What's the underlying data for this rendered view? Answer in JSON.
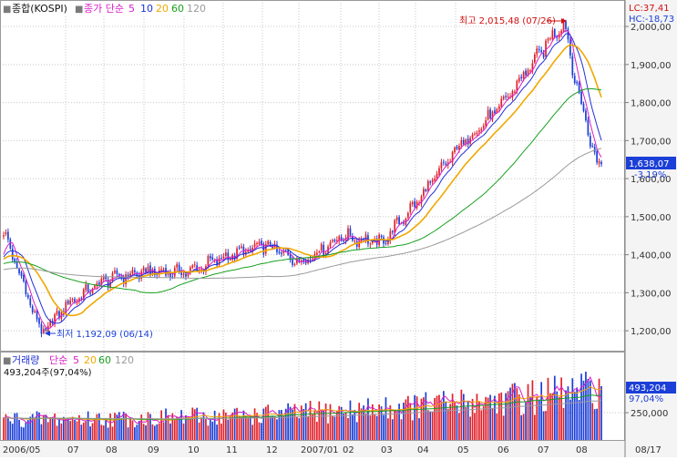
{
  "price_legend": {
    "checkbox": "■",
    "title": "종합(KOSPI)",
    "ma_label": "종가 단순",
    "ma5": "5",
    "ma10": "10",
    "ma20": "20",
    "ma60": "60",
    "ma120": "120"
  },
  "volume_legend": {
    "checkbox": "■",
    "title": "거래량",
    "ma_label": "단순",
    "ma5": "5",
    "ma20": "20",
    "ma60": "60",
    "ma120": "120",
    "current": "493,204주(97,04%)"
  },
  "price_axis": {
    "ticks": [
      {
        "v": 2000,
        "label": "2,000,00"
      },
      {
        "v": 1900,
        "label": "1,900,00"
      },
      {
        "v": 1800,
        "label": "1,800,00"
      },
      {
        "v": 1700,
        "label": "1,700,00"
      },
      {
        "v": 1600,
        "label": "1,600,00"
      },
      {
        "v": 1500,
        "label": "1,500,00"
      },
      {
        "v": 1400,
        "label": "1,400,00"
      },
      {
        "v": 1300,
        "label": "1,300,00"
      },
      {
        "v": 1200,
        "label": "1,200,00"
      }
    ],
    "lc": "LC:37,41",
    "hc": "HC:-18,73",
    "current_price": "1,638,07",
    "current_change": "-3,19%"
  },
  "volume_axis": {
    "ticks": [
      {
        "v": 250000,
        "label": "250,000"
      }
    ],
    "current": "493,204",
    "current_pct": "97,04%"
  },
  "annotations": {
    "high": "최고 2,015,48 (07/26)",
    "low": "최저 1,192,09 (06/14)"
  },
  "x_axis": {
    "labels": [
      "2006/05",
      "07",
      "08",
      "09",
      "10",
      "11",
      "12",
      "2007/01",
      "02",
      "03",
      "04",
      "05",
      "06",
      "07",
      "08"
    ],
    "right_label": "08/17"
  },
  "colors": {
    "up": "#e0202a",
    "down": "#1c3fd8",
    "ma5": "#d81ec8",
    "ma10": "#2030d8",
    "ma20": "#f0a800",
    "ma60": "#18a020",
    "ma120": "#9a9a9a",
    "grid": "#c8c8c8",
    "axis_panel": "#ececec"
  },
  "chart_data": {
    "type": "candlestick",
    "title": "종합(KOSPI)",
    "period": "2006/05 - 2007/08/17",
    "y_range": [
      1150,
      2060
    ],
    "moving_averages": [
      "5",
      "10",
      "20",
      "60",
      "120"
    ],
    "key_points": [
      {
        "x": "2006/05",
        "close": 1460
      },
      {
        "x": "2006/06/14",
        "close": 1192.09,
        "note": "low"
      },
      {
        "x": "2006/07",
        "close": 1270
      },
      {
        "x": "2006/08",
        "close": 1335
      },
      {
        "x": "2006/09",
        "close": 1355
      },
      {
        "x": "2006/10",
        "close": 1355
      },
      {
        "x": "2006/11",
        "close": 1395
      },
      {
        "x": "2006/12",
        "close": 1425
      },
      {
        "x": "2007/01",
        "close": 1380
      },
      {
        "x": "2007/02",
        "close": 1450
      },
      {
        "x": "2007/03",
        "close": 1430
      },
      {
        "x": "2007/04",
        "close": 1540
      },
      {
        "x": "2007/05",
        "close": 1680
      },
      {
        "x": "2007/06",
        "close": 1780
      },
      {
        "x": "2007/07/26",
        "close": 2015.48,
        "note": "high"
      },
      {
        "x": "2007/08",
        "close": 1850
      },
      {
        "x": "2007/08/17",
        "close": 1638.07
      }
    ],
    "volume": {
      "type": "bar",
      "last_value": 493204,
      "last_pct": 97.04,
      "y_ticks": [
        250000
      ]
    }
  }
}
